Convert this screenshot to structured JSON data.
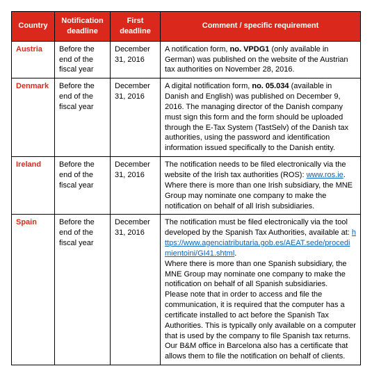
{
  "table": {
    "headers": [
      "Country",
      "Notification deadline",
      "First deadline",
      "Comment / specific requirement"
    ],
    "rows": [
      {
        "country": "Austria",
        "notification_deadline": "Before the end of the fiscal year",
        "first_deadline": "December 31, 2016",
        "comment_pre": "A notification form, ",
        "comment_bold": "no. VPDG1",
        "comment_post": " (only available in German) was published on the website of the Austrian tax authorities on November 28, 2016."
      },
      {
        "country": "Denmark",
        "notification_deadline": "Before the end of the fiscal year",
        "first_deadline": "December 31, 2016",
        "comment_pre": "A digital notification form, ",
        "comment_bold": "no. 05.034",
        "comment_post": " (available in Danish and English) was published on December 9, 2016. The managing director of the Danish company must sign this form and the form should be uploaded through the E-Tax System (TastSelv) of the Danish tax authorities, using the password and identification information issued specifically to the Danish entity."
      },
      {
        "country": "Ireland",
        "notification_deadline": "Before the end of the fiscal year",
        "first_deadline": "December 31, 2016",
        "comment_pre": "The notification needs to be filed electronically via the website of the Irish tax authorities (ROS): ",
        "comment_link": "www.ros.ie",
        "comment_post": ". Where there is more than one Irish subsidiary, the MNE Group may nominate one company to make the notification on behalf of all Irish subsidiaries."
      },
      {
        "country": "Spain",
        "notification_deadline": "Before the end of the fiscal year",
        "first_deadline": "December 31, 2016",
        "spain_p1_pre": "The notification must be filed electronically via the tool developed by the Spanish Tax Authorities, available at: ",
        "spain_link": "https://www.agenciatributaria.gob.es/AEAT.sede/procedimientoini/GI41.shtml",
        "spain_p1_post": ".",
        "spain_p2": "Where there is more than one Spanish subsidiary, the MNE Group may nominate one company to make the notification on behalf of all Spanish subsidiaries.",
        "spain_p3": "Please note that in order to access and file the communication, it is required that the computer has a certificate installed to act before the Spanish Tax Authorities. This is typically only available on a computer that is used by the company to file Spanish tax returns. Our B&M office in Barcelona also has a certificate that allows them to file the notification on behalf of clients."
      }
    ]
  }
}
